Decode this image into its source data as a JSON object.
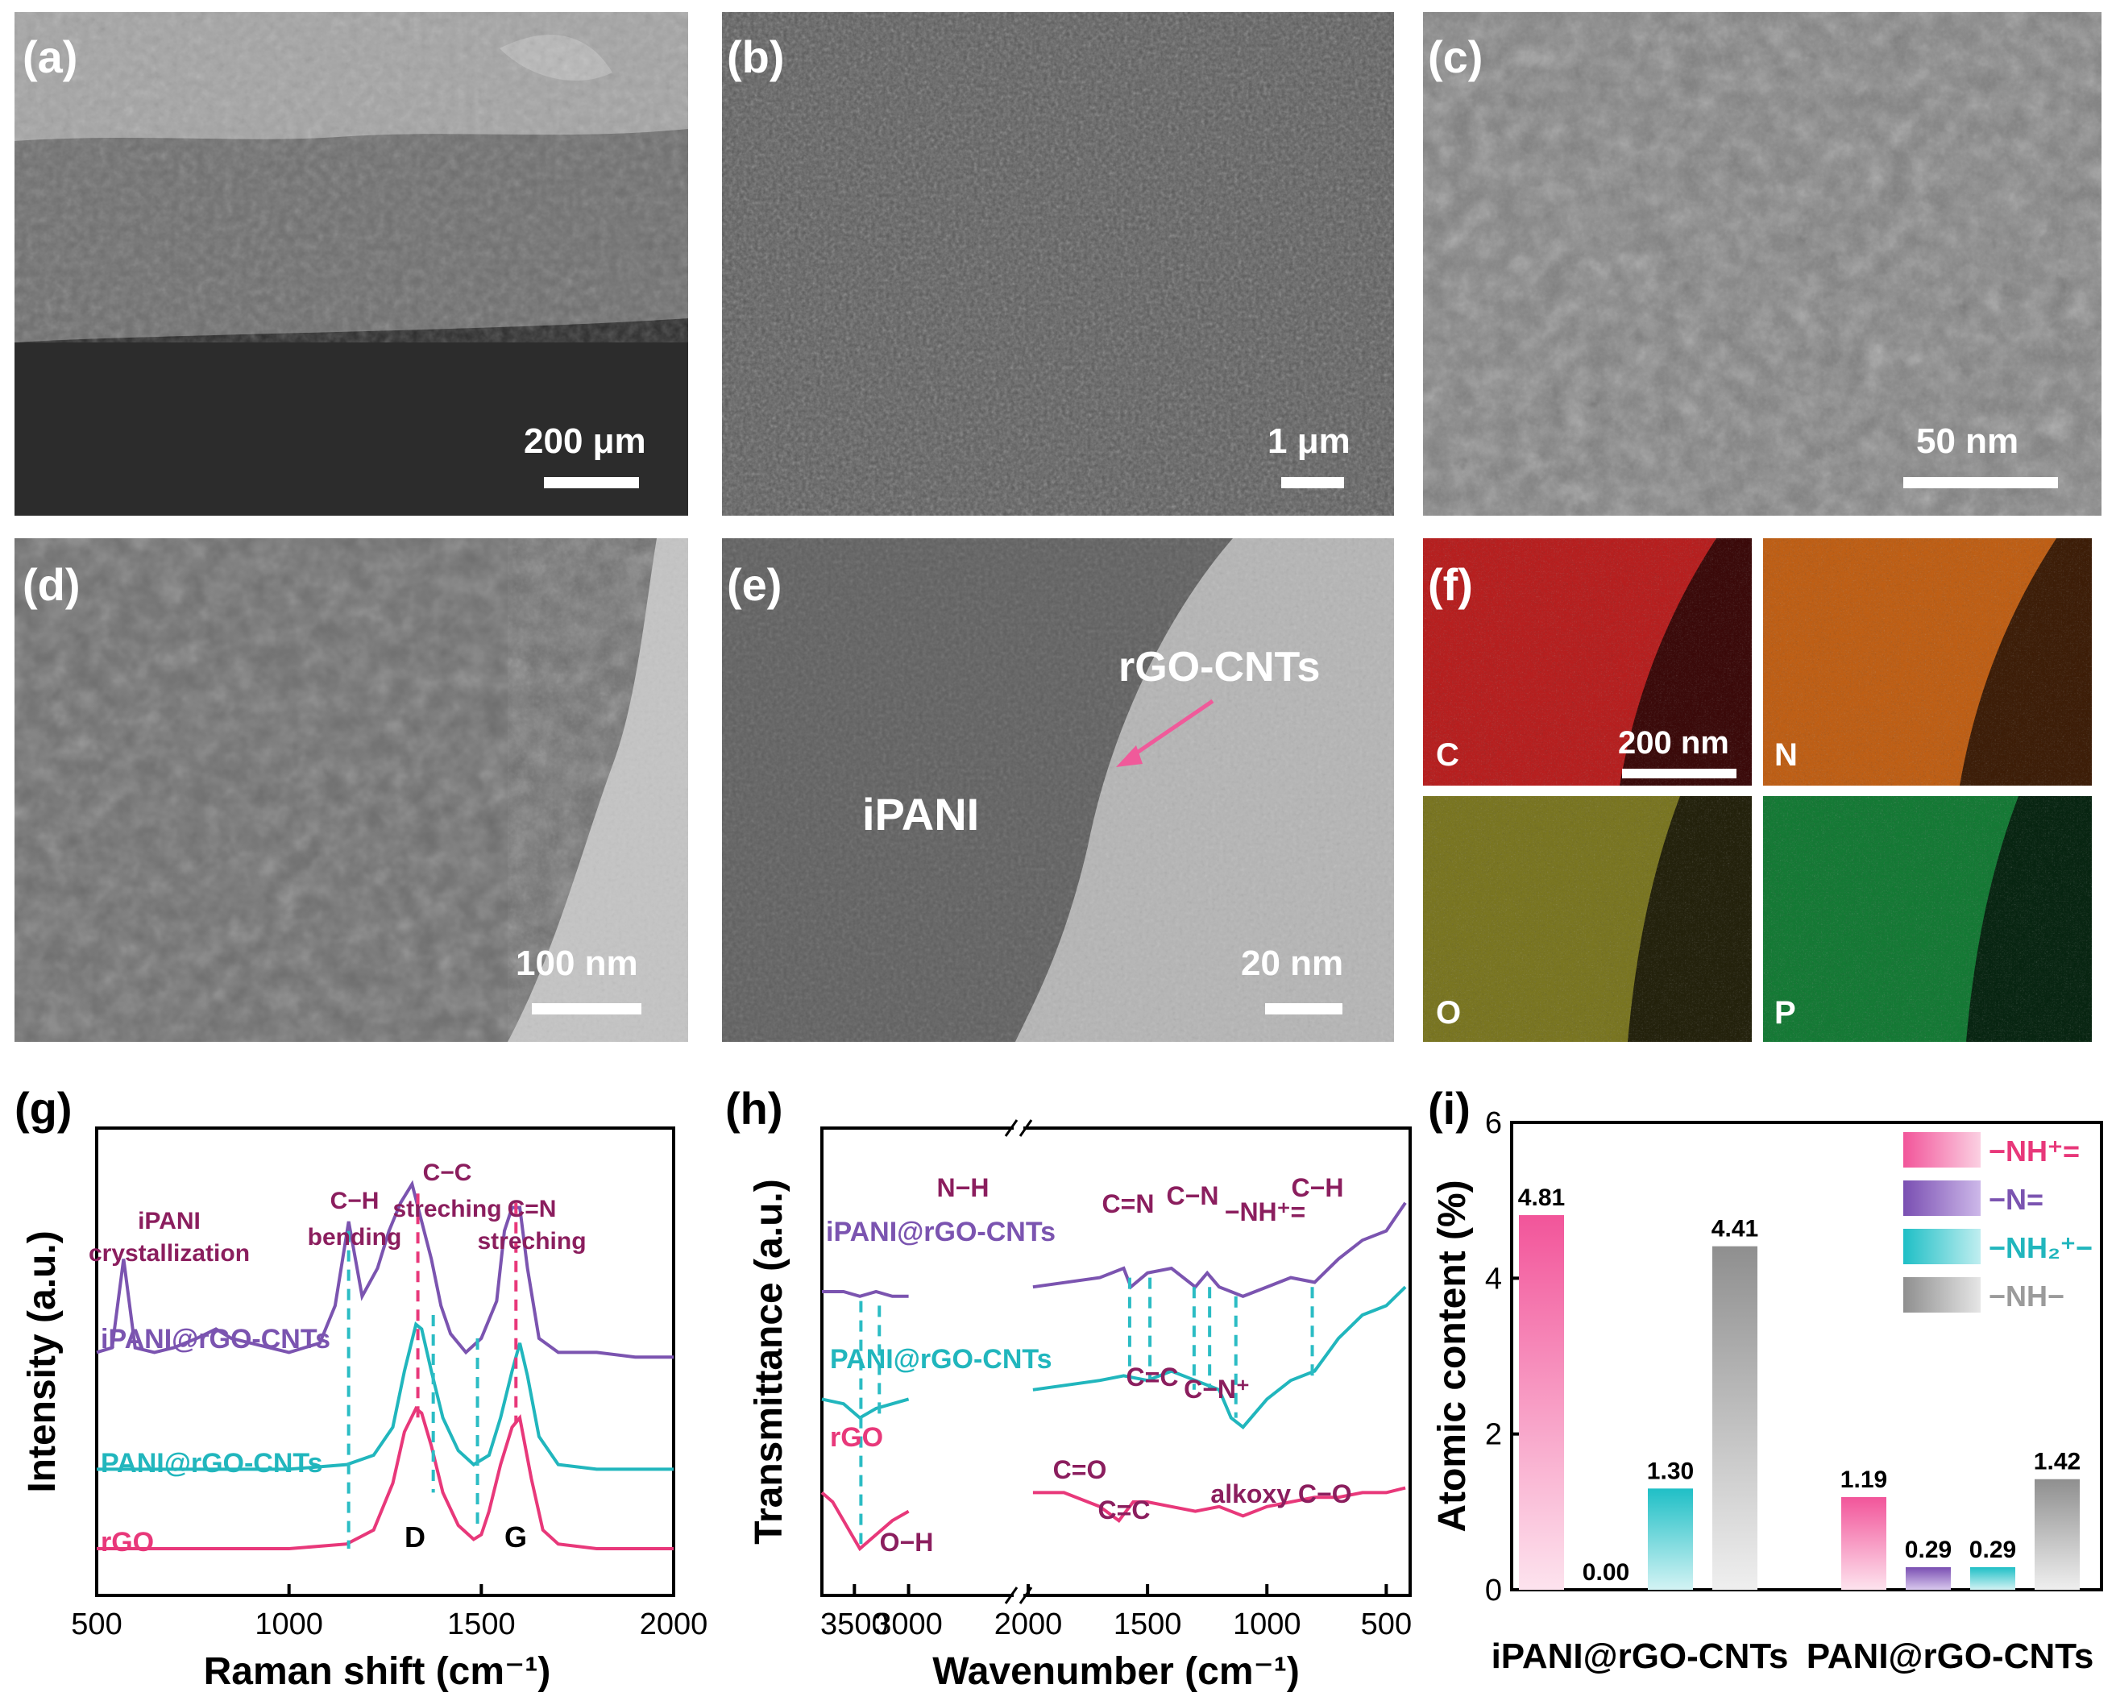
{
  "panels": {
    "a": {
      "letter": "(a)",
      "scale": "200 μm"
    },
    "b": {
      "letter": "(b)",
      "scale": "1 μm"
    },
    "c": {
      "letter": "(c)",
      "scale": "50 nm"
    },
    "d": {
      "letter": "(d)",
      "scale": "100 nm"
    },
    "e": {
      "letter": "(e)",
      "scale": "20 nm",
      "label_ipani": "iPANI",
      "label_rgo": "rGO-CNTs"
    },
    "f": {
      "letter": "(f)",
      "scale": "200 nm",
      "elements": [
        "C",
        "N",
        "O",
        "P"
      ]
    },
    "g": {
      "letter": "(g)"
    },
    "h": {
      "letter": "(h)"
    },
    "i": {
      "letter": "(i)"
    }
  },
  "colors": {
    "rgo": "#e8387a",
    "pani": "#21b6bd",
    "ipani": "#7b54b0",
    "nh": "#9b9b9b",
    "annot": "#8b1e5e",
    "dash": "#2bbcc4",
    "dash_red": "#e8387a",
    "map_c": "#d42020",
    "map_n": "#e0701a",
    "map_o": "#c9c430",
    "map_p": "#22b04a"
  },
  "chart_data": [
    {
      "panel": "g",
      "type": "line",
      "xlabel": "Raman shift (cm⁻¹)",
      "ylabel": "Intensity (a.u.)",
      "xlim": [
        500,
        2000
      ],
      "xticks": [
        "500",
        "1000",
        "1500",
        "2000"
      ],
      "series": [
        {
          "name": "iPANI@rGO-CNTs",
          "x": [
            500,
            540,
            570,
            600,
            650,
            700,
            760,
            810,
            850,
            900,
            1000,
            1080,
            1120,
            1155,
            1190,
            1230,
            1260,
            1290,
            1320,
            1345,
            1370,
            1395,
            1420,
            1460,
            1500,
            1540,
            1560,
            1580,
            1600,
            1620,
            1650,
            1700,
            1800,
            1900,
            2000
          ],
          "y": [
            0.52,
            0.53,
            0.72,
            0.53,
            0.52,
            0.53,
            0.55,
            0.57,
            0.55,
            0.54,
            0.52,
            0.54,
            0.62,
            0.8,
            0.64,
            0.7,
            0.78,
            0.84,
            0.88,
            0.8,
            0.72,
            0.62,
            0.56,
            0.52,
            0.55,
            0.63,
            0.78,
            0.83,
            0.83,
            0.7,
            0.55,
            0.52,
            0.52,
            0.51,
            0.51
          ]
        },
        {
          "name": "PANI@rGO-CNTs",
          "x": [
            500,
            1000,
            1150,
            1220,
            1270,
            1300,
            1330,
            1345,
            1370,
            1400,
            1440,
            1480,
            1520,
            1550,
            1580,
            1600,
            1620,
            1650,
            1700,
            1800,
            2000
          ],
          "y": [
            0.27,
            0.27,
            0.28,
            0.3,
            0.36,
            0.48,
            0.58,
            0.57,
            0.48,
            0.38,
            0.31,
            0.28,
            0.3,
            0.38,
            0.48,
            0.54,
            0.47,
            0.34,
            0.28,
            0.27,
            0.27
          ]
        },
        {
          "name": "rGO",
          "x": [
            500,
            1000,
            1150,
            1220,
            1270,
            1300,
            1330,
            1345,
            1370,
            1400,
            1440,
            1480,
            1500,
            1520,
            1550,
            1580,
            1600,
            1630,
            1660,
            1700,
            1800,
            2000
          ],
          "y": [
            0.1,
            0.1,
            0.11,
            0.14,
            0.24,
            0.35,
            0.4,
            0.39,
            0.32,
            0.22,
            0.15,
            0.12,
            0.13,
            0.18,
            0.28,
            0.36,
            0.38,
            0.25,
            0.14,
            0.11,
            0.1,
            0.1
          ]
        }
      ],
      "annotations": [
        "iPANI",
        "crystallization",
        "C−H",
        "bending",
        "C−C",
        "streching",
        "C=N",
        "streching",
        "D",
        "G"
      ],
      "legend_labels": [
        "iPANI@rGO-CNTs",
        "PANI@rGO-CNTs",
        "rGO"
      ]
    },
    {
      "panel": "h",
      "type": "line",
      "xlabel": "Wavenumber (cm⁻¹)",
      "ylabel": "Transmittance (a.u.)",
      "xticks": [
        "3500",
        "3000",
        "2000",
        "1500",
        "1000",
        "500"
      ],
      "axis_break": true,
      "series": [
        {
          "name": "iPANI@rGO-CNTs",
          "x": [
            3800,
            3600,
            3450,
            3300,
            3150,
            3000,
            1980,
            1700,
            1600,
            1570,
            1500,
            1400,
            1300,
            1250,
            1200,
            1150,
            1100,
            1000,
            900,
            800,
            700,
            600,
            500,
            420
          ],
          "y": [
            0.65,
            0.65,
            0.64,
            0.65,
            0.64,
            0.64,
            0.66,
            0.68,
            0.7,
            0.66,
            0.69,
            0.7,
            0.66,
            0.69,
            0.66,
            0.65,
            0.64,
            0.66,
            0.68,
            0.67,
            0.72,
            0.76,
            0.78,
            0.84
          ]
        },
        {
          "name": "PANI@rGO-CNTs",
          "x": [
            3800,
            3600,
            3450,
            3300,
            3150,
            3000,
            1980,
            1700,
            1600,
            1500,
            1400,
            1300,
            1200,
            1150,
            1100,
            1000,
            900,
            800,
            700,
            600,
            500,
            420
          ],
          "y": [
            0.42,
            0.41,
            0.38,
            0.4,
            0.41,
            0.42,
            0.44,
            0.46,
            0.47,
            0.46,
            0.48,
            0.46,
            0.44,
            0.38,
            0.36,
            0.42,
            0.46,
            0.48,
            0.55,
            0.6,
            0.62,
            0.66
          ]
        },
        {
          "name": "rGO",
          "x": [
            3800,
            3700,
            3600,
            3500,
            3450,
            3400,
            3300,
            3150,
            3000,
            1980,
            1850,
            1750,
            1700,
            1620,
            1560,
            1500,
            1400,
            1300,
            1200,
            1100,
            1000,
            900,
            800,
            700,
            600,
            500,
            420
          ],
          "y": [
            0.22,
            0.2,
            0.16,
            0.12,
            0.1,
            0.11,
            0.13,
            0.16,
            0.18,
            0.22,
            0.22,
            0.2,
            0.19,
            0.16,
            0.2,
            0.2,
            0.19,
            0.18,
            0.19,
            0.17,
            0.19,
            0.2,
            0.21,
            0.21,
            0.22,
            0.22,
            0.23
          ]
        }
      ],
      "annotations": [
        "N−H",
        "C=N",
        "C−N",
        "−NH⁺=",
        "C−H",
        "C=C",
        "C−N⁺",
        "C=O",
        "C=C",
        "alkoxy C−O",
        "O−H"
      ],
      "legend_labels": [
        "iPANI@rGO-CNTs",
        "PANI@rGO-CNTs",
        "rGO"
      ]
    },
    {
      "panel": "i",
      "type": "bar",
      "ylabel": "Atomic content (%)",
      "ylim": [
        0,
        6
      ],
      "yticks": [
        "0",
        "2",
        "4",
        "6"
      ],
      "categories": [
        "iPANI@rGO-CNTs",
        "PANI@rGO-CNTs"
      ],
      "series": [
        {
          "name": "−NH⁺=",
          "values": [
            4.81,
            1.19
          ],
          "labels": [
            "4.81",
            "1.19"
          ]
        },
        {
          "name": "−N=",
          "values": [
            0.0,
            0.29
          ],
          "labels": [
            "0.00",
            "0.29"
          ]
        },
        {
          "name": "−NH₂⁺−",
          "values": [
            1.3,
            0.29
          ],
          "labels": [
            "1.30",
            "0.29"
          ]
        },
        {
          "name": "−NH−",
          "values": [
            4.41,
            1.42
          ],
          "labels": [
            "4.41",
            "1.42"
          ]
        }
      ],
      "legend_position": "top-right"
    }
  ]
}
